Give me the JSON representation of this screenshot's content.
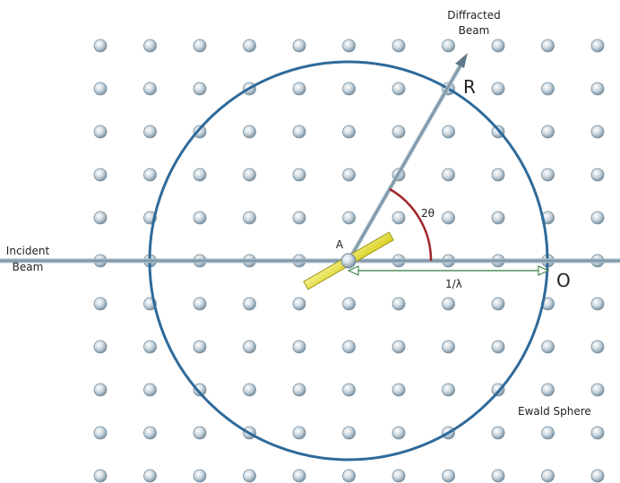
{
  "labels": {
    "diffracted_line1": "Diffracted",
    "diffracted_line2": "Beam",
    "incident_line1": "Incident",
    "incident_line2": "Beam",
    "point_r": "R",
    "point_a": "A",
    "point_o": "O",
    "angle": "2θ",
    "radius": "1/λ",
    "sphere": "Ewald Sphere"
  },
  "lattice": {
    "rows": 11,
    "cols": 11
  },
  "colors": {
    "sphere": "#2e6a9a",
    "beam": "#8fa8b8",
    "angle_arc": "#a0262b",
    "crystal": "#e8e23a",
    "radius_arrow": "#2f7a3a",
    "atom": "#c9d5de"
  }
}
